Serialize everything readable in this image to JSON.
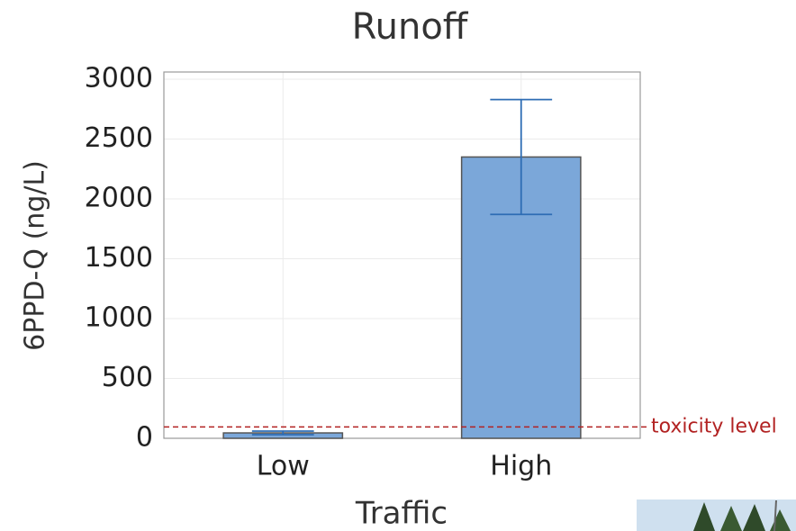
{
  "chart_data": {
    "type": "bar",
    "title": "Runoff",
    "x_label": "Traffic",
    "y_label": "6PPD-Q (ng/L)",
    "categories": [
      "Low",
      "High"
    ],
    "values": [
      45,
      2350
    ],
    "errors": [
      15,
      480
    ],
    "color": "#7ba7d9",
    "error_color": "#2e6db4",
    "ylim": [
      0,
      3060
    ],
    "yticks": [
      0,
      500,
      1000,
      1500,
      2000,
      2500,
      3000
    ],
    "grid": true,
    "reference_line": {
      "value": 95,
      "label": "toxicity level",
      "color": "#b22222"
    }
  }
}
